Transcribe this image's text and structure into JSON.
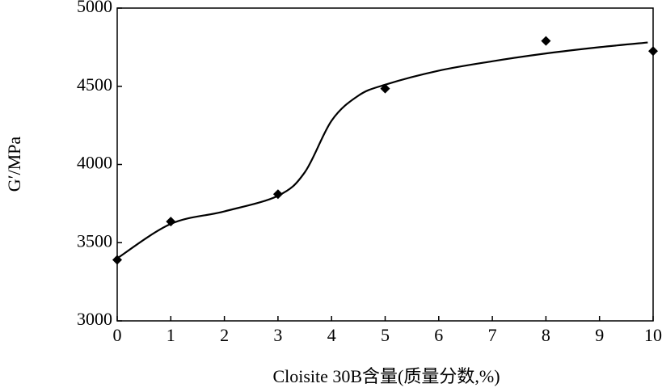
{
  "chart_data": {
    "type": "scatter",
    "xlabel": "Cloisite 30B含量(质量分数,%)",
    "ylabel": "G′/MPa",
    "xlim": [
      0,
      10
    ],
    "xticks": [
      0,
      1,
      2,
      3,
      4,
      5,
      6,
      7,
      8,
      9,
      10
    ],
    "ylim": [
      3000,
      5000
    ],
    "yticks": [
      3000,
      3500,
      4000,
      4500,
      5000
    ],
    "series": [
      {
        "type": "scatter",
        "marker": "diamond",
        "color": "#000000",
        "x": [
          0,
          1,
          3,
          5,
          8,
          10
        ],
        "values": [
          3390,
          3635,
          3810,
          4485,
          4790,
          4725
        ]
      },
      {
        "type": "line",
        "smooth": true,
        "color": "#000000",
        "x": [
          0,
          1,
          2,
          3,
          3.5,
          4,
          4.5,
          5,
          6,
          7,
          8,
          9,
          9.9
        ],
        "values": [
          3400,
          3620,
          3700,
          3800,
          3950,
          4280,
          4440,
          4510,
          4600,
          4660,
          4710,
          4750,
          4780
        ]
      }
    ]
  }
}
